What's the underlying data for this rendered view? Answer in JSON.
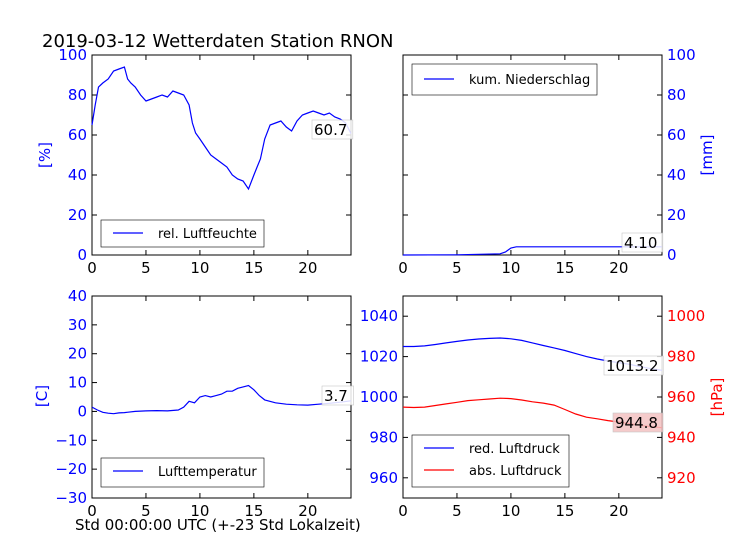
{
  "figure": {
    "title": "2019-03-12 Wetterdaten Station RNON",
    "xcaption": "Std 00:00:00 UTC (+-23 Std Lokalzeit)"
  },
  "chart_data": [
    {
      "type": "line",
      "ylabel": "[%]",
      "ylim": [
        0,
        100
      ],
      "xlim": [
        0,
        24
      ],
      "xticks": [
        0,
        5,
        10,
        15,
        20
      ],
      "yticks": [
        0,
        20,
        40,
        60,
        80,
        100
      ],
      "axis": "left",
      "legend_position": "lower-left",
      "series": [
        {
          "name": "rel. Luftfeuchte",
          "color": "#0000ff",
          "x": [
            0,
            0.3,
            0.6,
            1,
            1.5,
            2,
            2.5,
            3,
            3.3,
            3.6,
            4,
            4.5,
            5,
            5.5,
            6,
            6.5,
            7,
            7.5,
            8,
            8.5,
            9,
            9.3,
            9.6,
            10,
            10.5,
            11,
            11.5,
            12,
            12.5,
            13,
            13.5,
            14,
            14.5,
            15,
            15.3,
            15.6,
            16,
            16.5,
            17,
            17.5,
            18,
            18.5,
            19,
            19.5,
            20,
            20.5,
            21,
            21.5,
            22,
            22.5,
            23,
            23.5,
            24
          ],
          "values": [
            65,
            75,
            84,
            86,
            88,
            92,
            93,
            94,
            88,
            86,
            84,
            80,
            77,
            78,
            79,
            80,
            79,
            82,
            81,
            80,
            75,
            66,
            61,
            58,
            54,
            50,
            48,
            46,
            44,
            40,
            38,
            37,
            33,
            40,
            44,
            48,
            58,
            65,
            66,
            67,
            64,
            62,
            67,
            70,
            71,
            72,
            71,
            70,
            71,
            69,
            68,
            66,
            60.7
          ]
        }
      ],
      "last_value_label": "60.7"
    },
    {
      "type": "line",
      "ylabel": "[mm]",
      "ylim": [
        0,
        100
      ],
      "xlim": [
        0,
        24
      ],
      "xticks": [
        0,
        5,
        10,
        15,
        20
      ],
      "yticks": [
        0,
        20,
        40,
        60,
        80,
        100
      ],
      "axis": "right",
      "legend_position": "upper-left",
      "series": [
        {
          "name": "kum. Niederschlag",
          "color": "#0000ff",
          "x": [
            0,
            5,
            9,
            9.5,
            10,
            10.5,
            12,
            15,
            20,
            24
          ],
          "values": [
            0,
            0.1,
            0.6,
            1.5,
            3.5,
            4.1,
            4.1,
            4.1,
            4.1,
            4.1
          ]
        }
      ],
      "last_value_label": "4.10"
    },
    {
      "type": "line",
      "ylabel": "[C]",
      "ylim": [
        -30,
        40
      ],
      "xlim": [
        0,
        24
      ],
      "xticks": [
        0,
        5,
        10,
        15,
        20
      ],
      "yticks": [
        -30,
        -20,
        -10,
        0,
        10,
        20,
        30,
        40
      ],
      "axis": "left",
      "legend_position": "lower-left",
      "series": [
        {
          "name": "Lufttemperatur",
          "color": "#0000ff",
          "x": [
            0,
            0.5,
            1,
            1.5,
            2,
            2.5,
            3,
            4,
            5,
            6,
            7,
            8,
            8.5,
            9,
            9.5,
            10,
            10.5,
            11,
            11.5,
            12,
            12.5,
            13,
            13.5,
            14,
            14.5,
            15,
            15.5,
            16,
            17,
            18,
            19,
            20,
            21,
            22,
            23,
            24
          ],
          "values": [
            1.5,
            0.5,
            -0.3,
            -0.6,
            -0.8,
            -0.5,
            -0.4,
            0,
            0.2,
            0.3,
            0.2,
            0.5,
            1.5,
            3.5,
            3,
            5,
            5.5,
            5,
            5.5,
            6,
            7,
            7,
            8,
            8.5,
            9,
            7.5,
            5.5,
            4,
            3,
            2.5,
            2.3,
            2.2,
            2.5,
            2.8,
            3.2,
            3.7
          ]
        }
      ],
      "last_value_label": "3.7"
    },
    {
      "type": "line",
      "ylabel": "[hPa]",
      "ylim": [
        950,
        1050
      ],
      "ylim_right": [
        910,
        1010
      ],
      "xlim": [
        0,
        24
      ],
      "xticks": [
        0,
        5,
        10,
        15,
        20
      ],
      "yticks": [
        960,
        980,
        1000,
        1020,
        1040
      ],
      "yticks_right": [
        920,
        940,
        960,
        980,
        1000
      ],
      "axis": "both",
      "legend_position": "lower-left",
      "series": [
        {
          "name": "red. Luftdruck",
          "color": "#0000ff",
          "axis": "left",
          "x": [
            0,
            1,
            2,
            3,
            4,
            5,
            6,
            7,
            8,
            9,
            10,
            11,
            12,
            13,
            14,
            15,
            16,
            17,
            18,
            19,
            20,
            21,
            22,
            23,
            24
          ],
          "values": [
            1025,
            1025,
            1025.3,
            1026,
            1026.8,
            1027.5,
            1028.2,
            1028.7,
            1029,
            1029.2,
            1028.8,
            1028,
            1026.8,
            1025.5,
            1024.3,
            1023,
            1021.5,
            1020,
            1018.8,
            1017.8,
            1017,
            1016.2,
            1015,
            1014,
            1013.2
          ]
        },
        {
          "name": "abs. Luftdruck",
          "color": "#ff0000",
          "axis": "right",
          "x": [
            0,
            1,
            2,
            3,
            4,
            5,
            6,
            7,
            8,
            9,
            10,
            11,
            12,
            13,
            14,
            15,
            16,
            17,
            18,
            19,
            20,
            21,
            22,
            23,
            24
          ],
          "values": [
            955,
            954.8,
            955,
            955.8,
            956.6,
            957.4,
            958.2,
            958.6,
            959,
            959.4,
            959.2,
            958.5,
            957.6,
            957,
            956,
            953.8,
            951.6,
            950,
            949.2,
            948.3,
            947.6,
            946.8,
            946,
            945.3,
            944.8
          ]
        }
      ],
      "last_value_labels": [
        "1013.2",
        "944.8"
      ]
    }
  ]
}
